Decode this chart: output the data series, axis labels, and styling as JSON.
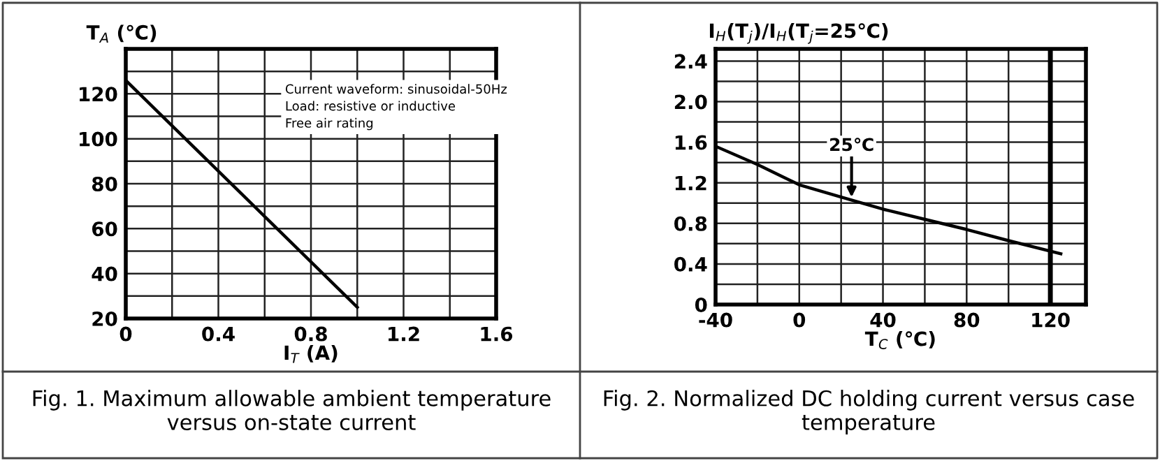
{
  "chart_data": [
    {
      "type": "line",
      "title": "Fig. 1. Maximum allowable ambient temperature versus on-state current",
      "xlabel": "I$_{T}$ (A)",
      "ylabel": "T$_{A}$ (℃)",
      "x": [
        0,
        1.0
      ],
      "series": [
        {
          "color": "#000000",
          "values": [
            126,
            25
          ]
        }
      ],
      "xlim": [
        0,
        1.6
      ],
      "ylim": [
        20,
        140
      ],
      "xticks": [
        0,
        {
          "value": 0.2,
          "label": null
        },
        0.4,
        {
          "value": 0.6,
          "label": null
        },
        0.8,
        {
          "value": 1.0,
          "label": null
        },
        1.2,
        {
          "value": 1.4,
          "label": null
        },
        1.6
      ],
      "yticks": [
        20,
        {
          "value": 30,
          "label": null
        },
        40,
        {
          "value": 50,
          "label": null
        },
        60,
        {
          "value": 70,
          "label": null
        },
        80,
        {
          "value": 90,
          "label": null
        },
        100,
        {
          "value": 110,
          "label": null
        },
        120,
        {
          "value": 130,
          "label": null
        },
        {
          "value": 140,
          "label": null
        }
      ],
      "grid": true,
      "marker": "none",
      "line_style": "solid",
      "annotations": [
        "Current waveform: sinusoidal-50Hz",
        "Load: resistive or inductive",
        "Free air rating"
      ]
    },
    {
      "type": "line",
      "title": "Fig. 2. Normalized DC holding current versus case temperature",
      "xlabel": "T$_{C}$ (℃)",
      "ylabel": "I$_{H}$(T$_{j}$)/I$_{H}$(T$_{j}$=25℃)",
      "x": [
        -40,
        -20,
        0,
        20,
        40,
        60,
        80,
        100,
        125
      ],
      "series": [
        {
          "color": "#000000",
          "values": [
            1.56,
            1.38,
            1.18,
            1.06,
            0.94,
            0.84,
            0.74,
            0.63,
            0.5
          ]
        }
      ],
      "xlim": [
        -40,
        137
      ],
      "ylim": [
        0,
        2.52
      ],
      "xticks": [
        -40,
        {
          "value": -20,
          "label": null
        },
        0,
        {
          "value": 20,
          "label": null
        },
        40,
        {
          "value": 60,
          "label": null
        },
        80,
        {
          "value": 100,
          "label": null
        },
        120
      ],
      "yticks": [
        0,
        {
          "value": 0.2,
          "label": null
        },
        0.4,
        {
          "value": 0.6,
          "label": null
        },
        0.8,
        {
          "value": 1.0,
          "label": null
        },
        1.2,
        {
          "value": 1.4,
          "label": null
        },
        1.6,
        {
          "value": 1.8,
          "label": null
        },
        {
          "value": 2.0,
          "label": "2.0"
        },
        {
          "value": 2.2,
          "label": null
        },
        2.4
      ],
      "grid": true,
      "marker": "none",
      "line_style": "solid",
      "ref_lines": [
        {
          "axis": "x",
          "value": 120,
          "color": "#000000"
        }
      ],
      "annotations": [
        {
          "text": "25℃",
          "x": 25,
          "y": 1.02
        }
      ]
    }
  ]
}
